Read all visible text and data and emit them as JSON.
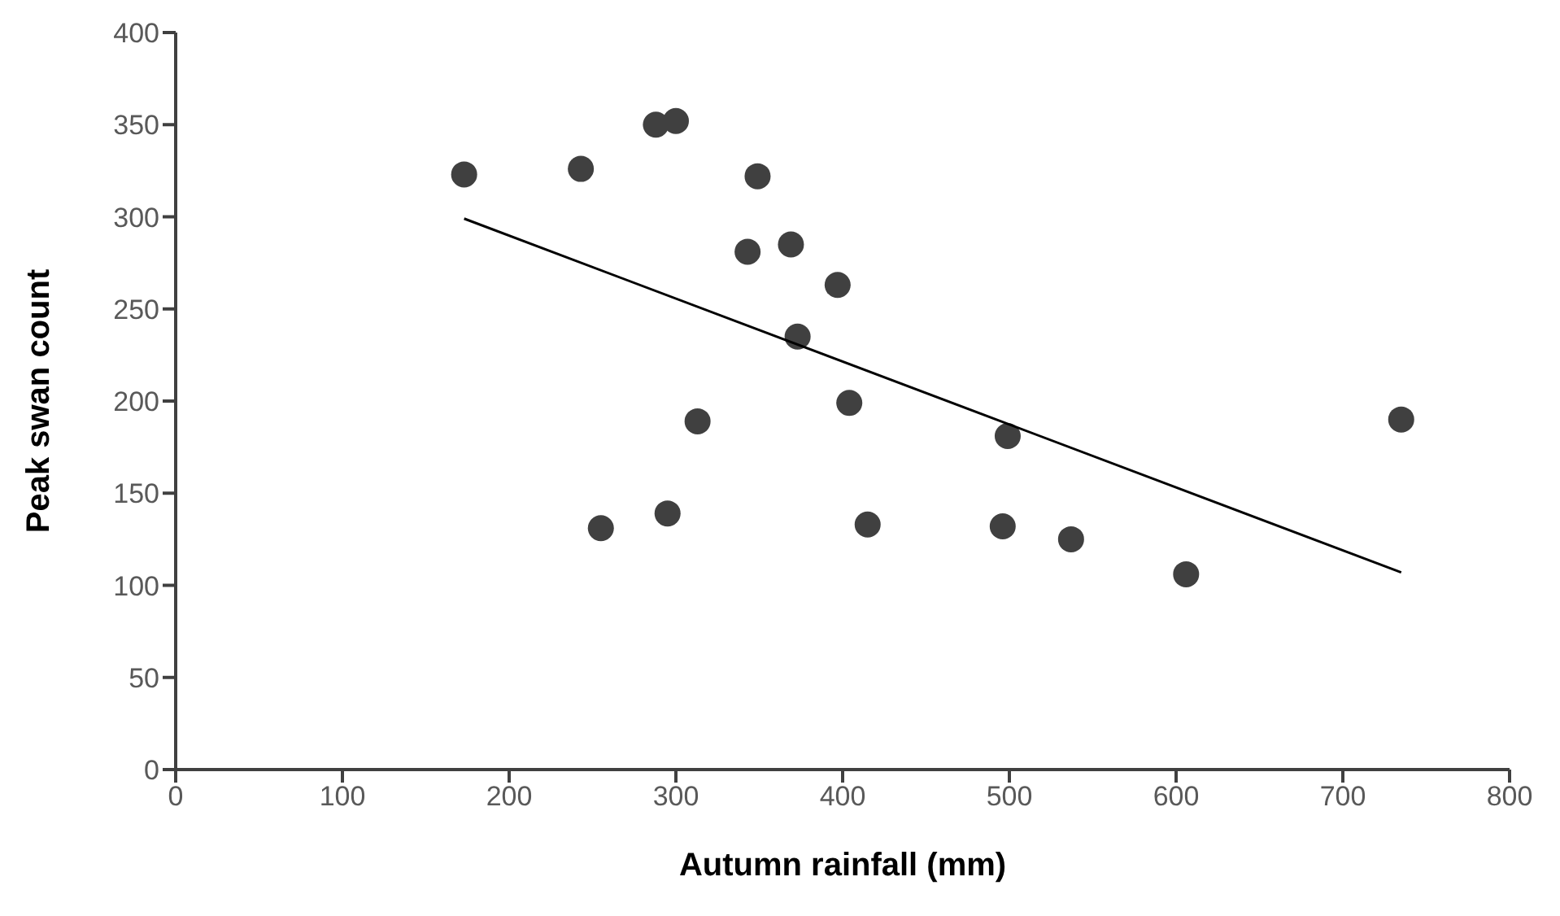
{
  "chart_data": {
    "type": "scatter",
    "xlabel": "Autumn rainfall (mm)",
    "ylabel": "Peak swan count",
    "xlim": [
      0,
      800
    ],
    "xticks": [
      0,
      100,
      200,
      300,
      400,
      500,
      600,
      700,
      800
    ],
    "ylim": [
      0,
      400
    ],
    "yticks": [
      0,
      50,
      100,
      150,
      200,
      250,
      300,
      350,
      400
    ],
    "grid": false,
    "legend": false,
    "marker": "circle",
    "series": [
      {
        "type": "scatter",
        "color": "#404040",
        "x": [
          173,
          243,
          288,
          300,
          349,
          343,
          369,
          397,
          373,
          404,
          313,
          255,
          295,
          415,
          499,
          496,
          537,
          606,
          735
        ],
        "values": [
          323,
          326,
          350,
          352,
          322,
          281,
          285,
          263,
          235,
          199,
          189,
          131,
          139,
          133,
          181,
          132,
          125,
          106,
          190
        ]
      },
      {
        "type": "line",
        "color": "#000000",
        "marker": "none",
        "line_style": "solid",
        "x": [
          173,
          735
        ],
        "values": [
          299,
          107
        ]
      }
    ]
  }
}
